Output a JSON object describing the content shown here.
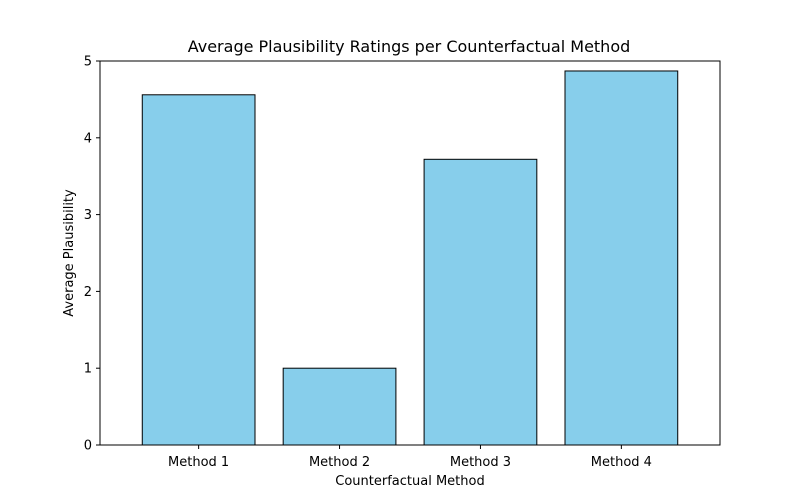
{
  "chart_data": {
    "type": "bar",
    "title": "Average Plausibility Ratings per Counterfactual Method",
    "xlabel": "Counterfactual Method",
    "ylabel": "Average Plausibility",
    "categories": [
      "Method 1",
      "Method 2",
      "Method 3",
      "Method 4"
    ],
    "values": [
      4.56,
      1.0,
      3.72,
      4.87
    ],
    "ylim": [
      0,
      5
    ],
    "yticks": [
      0,
      1,
      2,
      3,
      4,
      5
    ],
    "grid": false,
    "bar_color": "#87ceeb",
    "edge_color": "#000000"
  }
}
